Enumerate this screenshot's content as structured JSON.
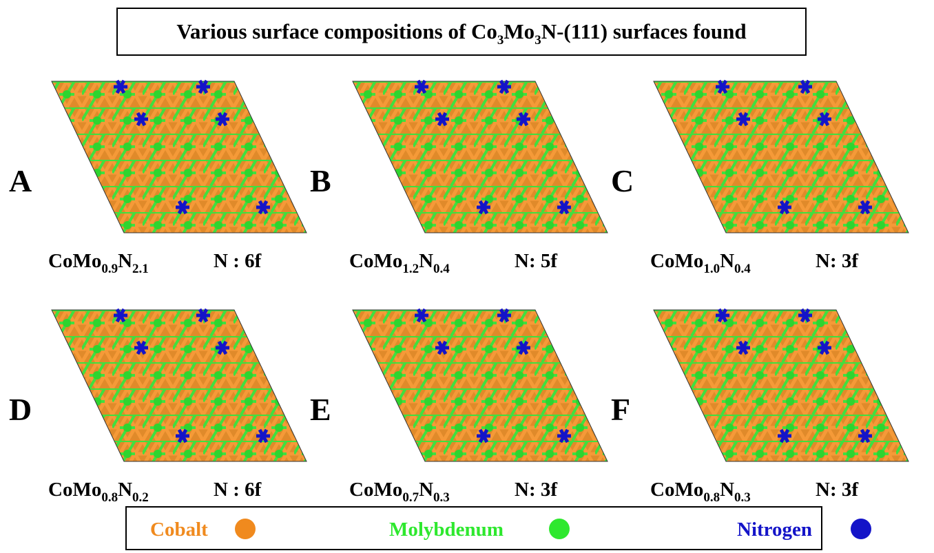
{
  "title": [
    "Various surface compositions of Co",
    "3",
    "Mo",
    "3",
    "N-(111) surfaces found"
  ],
  "panels": [
    {
      "label": "A",
      "formula": [
        "CoMo",
        "0.9",
        "N",
        "2.1"
      ],
      "site": "N : 6f"
    },
    {
      "label": "B",
      "formula": [
        "CoMo",
        "1.2",
        "N",
        "0.4"
      ],
      "site": "N: 5f"
    },
    {
      "label": "C",
      "formula": [
        "CoMo",
        "1.0",
        "N",
        "0.4"
      ],
      "site": "N: 3f"
    },
    {
      "label": "D",
      "formula": [
        "CoMo",
        "0.8",
        "N",
        "0.2"
      ],
      "site": "N : 6f"
    },
    {
      "label": "E",
      "formula": [
        "CoMo",
        "0.7",
        "N",
        "0.3"
      ],
      "site": "N: 3f"
    },
    {
      "label": "F",
      "formula": [
        "CoMo",
        "0.8",
        "N",
        "0.3"
      ],
      "site": "N: 3f"
    }
  ],
  "legend": [
    "Cobalt",
    "Molybdenum",
    "Nitrogen"
  ]
}
